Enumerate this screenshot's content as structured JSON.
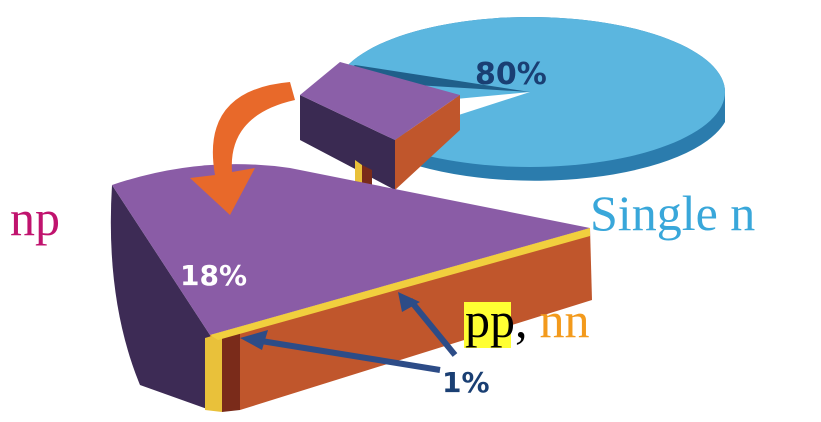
{
  "pies": {
    "top_share": "80%",
    "bottom_share": "18%",
    "small_share": "1%"
  },
  "labels": {
    "np": "np",
    "single_n": "Single n",
    "pp": "pp",
    "separator": ",",
    "nn": "nn"
  }
}
